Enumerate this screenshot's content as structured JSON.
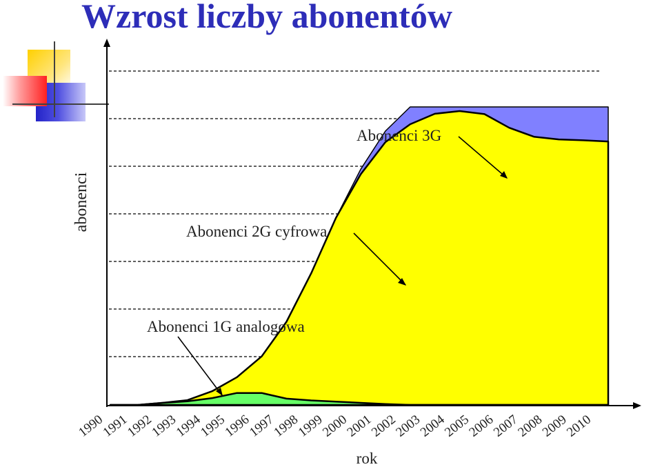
{
  "title": "Wzrost liczby abonentów",
  "colors": {
    "title": "#2d2db8",
    "series_1g": "#66ff66",
    "series_2g": "#ffff00",
    "series_3g": "#8080ff",
    "outline": "#000000",
    "grid": "#000000"
  },
  "chart_data": {
    "type": "area",
    "stacked": false,
    "xlabel": "rok",
    "ylabel": "abonenci",
    "x": [
      "1990",
      "1991",
      "1992",
      "1993",
      "1994",
      "1995",
      "1996",
      "1997",
      "1998",
      "1999",
      "2000",
      "2001",
      "2002",
      "2003",
      "2004",
      "2005",
      "2006",
      "2007",
      "2008",
      "2009",
      "2010"
    ],
    "ylim": [
      0,
      100
    ],
    "yticks_shown": false,
    "grid": "horizontal dashed",
    "series": [
      {
        "name": "Abonenci 3G",
        "color": "#8080ff",
        "values": [
          0,
          0,
          0.7,
          1.6,
          4.6,
          9.3,
          16.3,
          27.9,
          44.2,
          62.8,
          79.1,
          91.9,
          100,
          100,
          100,
          100,
          100,
          100,
          100,
          100,
          100
        ]
      },
      {
        "name": "Abonenci 2G cyfrowa",
        "color": "#ffff00",
        "values": [
          0,
          0,
          0.7,
          1.6,
          4.6,
          9.3,
          16.3,
          27.9,
          44.2,
          62.8,
          77.4,
          88.2,
          94.2,
          97.7,
          98.6,
          97.6,
          93.0,
          90.0,
          89.1,
          88.8,
          88.4
        ]
      },
      {
        "name": "Abonenci 1G analogowa",
        "color": "#66ff66",
        "values": [
          0,
          0,
          0.7,
          1.2,
          2.3,
          4.0,
          4.0,
          2.1,
          1.5,
          1.1,
          0.7,
          0.3,
          0,
          0,
          0,
          0,
          0,
          0,
          0,
          0,
          0
        ]
      }
    ],
    "annotations": [
      {
        "text": "Abonenci 3G",
        "series": "Abonenci 3G"
      },
      {
        "text": "Abonenci 2G cyfrowa",
        "series": "Abonenci 2G cyfrowa"
      },
      {
        "text": "Abonenci 1G analogowa",
        "series": "Abonenci 1G analogowa"
      }
    ]
  }
}
